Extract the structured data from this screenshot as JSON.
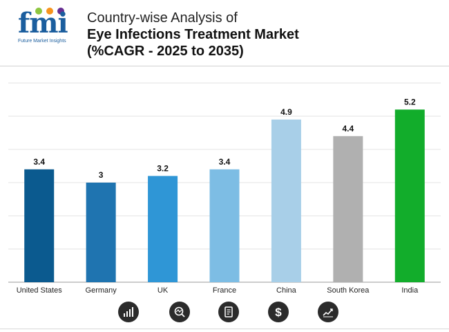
{
  "header": {
    "logo_text": "fmi",
    "logo_subtext": "Future Market Insights",
    "title_line1": "Country-wise Analysis of",
    "title_line2": "Eye Infections Treatment Market",
    "title_line3": "(%CAGR - 2025 to 2035)"
  },
  "chart_data": {
    "type": "bar",
    "title": "Country-wise Analysis of Eye Infections Treatment Market (%CAGR - 2025 to 2035)",
    "categories": [
      "United States",
      "Germany",
      "UK",
      "France",
      "China",
      "South Korea",
      "India"
    ],
    "values": [
      3.4,
      3,
      3.2,
      3.4,
      4.9,
      4.4,
      5.2
    ],
    "value_labels": [
      "3.4",
      "3",
      "3.2",
      "3.4",
      "4.9",
      "4.4",
      "5.2"
    ],
    "colors": [
      "#0b5a8f",
      "#1f74b0",
      "#2f96d6",
      "#7dbde4",
      "#a8cfe8",
      "#b0b0b0",
      "#12ad2b"
    ],
    "xlabel": "",
    "ylabel": "",
    "ylim": [
      0,
      6
    ],
    "grid": true,
    "legend": "none"
  },
  "footer_icons": [
    "growth-chart-icon",
    "magnifier-chart-icon",
    "document-icon",
    "dollar-icon",
    "trend-chart-icon"
  ]
}
